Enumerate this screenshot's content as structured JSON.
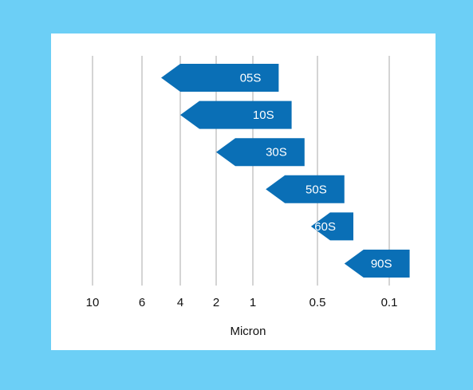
{
  "chart_data": {
    "type": "bar",
    "xlabel": "Micron",
    "x_ticks": [
      {
        "value": 10,
        "label": "10"
      },
      {
        "value": 6,
        "label": "6"
      },
      {
        "value": 4,
        "label": "4"
      },
      {
        "value": 2,
        "label": "2"
      },
      {
        "value": 1,
        "label": "1"
      },
      {
        "value": 0.5,
        "label": "0.5"
      },
      {
        "value": 0.1,
        "label": "0.1"
      }
    ],
    "series": [
      {
        "name": "05S",
        "coarse_micron": 5,
        "fine_micron": 0.8
      },
      {
        "name": "10S",
        "coarse_micron": 4,
        "fine_micron": 0.7
      },
      {
        "name": "30S",
        "coarse_micron": 2,
        "fine_micron": 0.6
      },
      {
        "name": "50S",
        "coarse_micron": 0.9,
        "fine_micron": 0.35
      },
      {
        "name": "60S",
        "coarse_micron": 0.55,
        "fine_micron": 0.3
      },
      {
        "name": "90S",
        "coarse_micron": 0.35,
        "fine_micron": 0.05
      }
    ],
    "grid": true,
    "legend": "none"
  },
  "colors": {
    "background": "#6ccff6",
    "panel": "#ffffff",
    "bar": "#0a6fb6",
    "grid": "#a9a9a9",
    "text": "#111111"
  }
}
